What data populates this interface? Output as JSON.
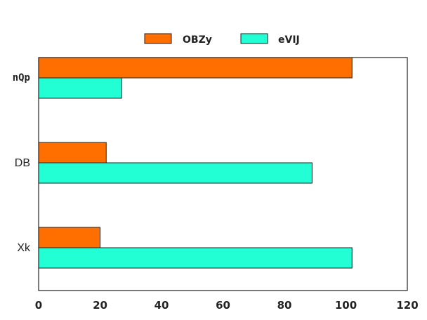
{
  "chart_data": {
    "type": "bar",
    "orientation": "horizontal",
    "categories": [
      "nQp",
      "DB",
      "Xk"
    ],
    "series": [
      {
        "name": "OBZy",
        "color": "#ff6f00",
        "values": [
          102,
          22,
          20
        ]
      },
      {
        "name": "eVIJ",
        "color": "#22ffd4",
        "values": [
          27,
          89,
          102
        ]
      }
    ],
    "xlim": [
      0,
      120
    ],
    "xticks": [
      "0",
      "20",
      "40",
      "60",
      "80",
      "100",
      "120"
    ],
    "grid": false,
    "legend_position": "top-center"
  }
}
